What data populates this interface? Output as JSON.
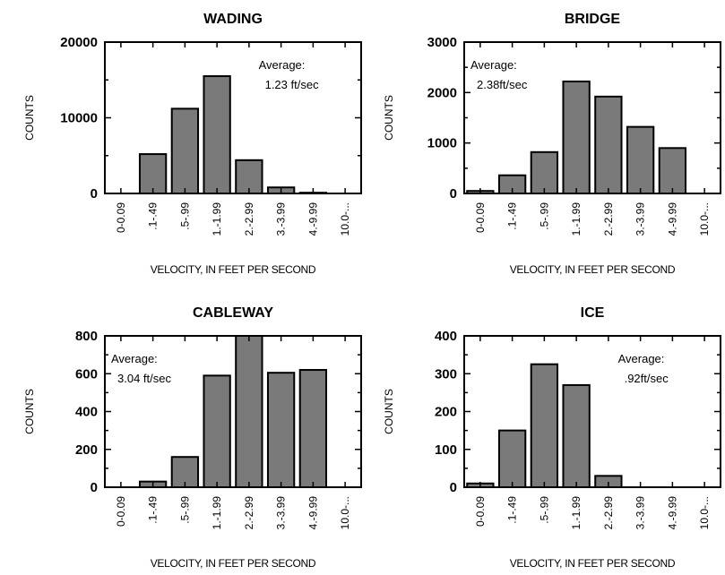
{
  "chart_data": [
    {
      "type": "bar",
      "title": "WADING",
      "xlabel": "VELOCITY, IN FEET PER SECOND",
      "ylabel": "COUNTS",
      "categories": [
        "0-0.09",
        ".1-.49",
        ".5-.99",
        "1.-1.99",
        "2.-2.99",
        "3.-3.99",
        "4.-9.99",
        "10.0-..."
      ],
      "values": [
        0,
        5200,
        11200,
        15500,
        4400,
        800,
        100,
        0
      ],
      "ylim": [
        0,
        20000
      ],
      "yticks": [
        0,
        10000,
        20000
      ],
      "annotation": [
        "Average:",
        "1.23 ft/sec"
      ],
      "annotation_position": "top-right",
      "grid": false
    },
    {
      "type": "bar",
      "title": "BRIDGE",
      "xlabel": "VELOCITY, IN FEET PER SECOND",
      "ylabel": "COUNTS",
      "categories": [
        "0-0.09",
        ".1-.49",
        ".5-.99",
        "1.-1.99",
        "2.-2.99",
        "3.-3.99",
        "4.-9.99",
        "10.0-..."
      ],
      "values": [
        50,
        360,
        820,
        2220,
        1920,
        1320,
        900,
        0
      ],
      "ylim": [
        0,
        3000
      ],
      "yticks": [
        0,
        1000,
        2000,
        3000
      ],
      "annotation": [
        "Average:",
        "2.38ft/sec"
      ],
      "annotation_position": "top-left",
      "grid": false
    },
    {
      "type": "bar",
      "title": "CABLEWAY",
      "xlabel": "VELOCITY, IN FEET PER SECOND",
      "ylabel": "COUNTS",
      "categories": [
        "0-0.09",
        ".1-.49",
        ".5-.99",
        "1.-1.99",
        "2.-2.99",
        "3.-3.99",
        "4.-9.99",
        "10.0-..."
      ],
      "values": [
        0,
        30,
        160,
        590,
        800,
        605,
        620,
        0
      ],
      "ylim": [
        0,
        800
      ],
      "yticks": [
        0,
        200,
        400,
        600,
        800
      ],
      "annotation": [
        "Average:",
        "3.04 ft/sec"
      ],
      "annotation_position": "top-left",
      "grid": false
    },
    {
      "type": "bar",
      "title": "ICE",
      "xlabel": "VELOCITY, IN FEET PER SECOND",
      "ylabel": "COUNTS",
      "categories": [
        "0-0.09",
        ".1-.49",
        ".5-.99",
        "1.-1.99",
        "2.-2.99",
        "3.-3.99",
        "4.-9.99",
        "10.0-..."
      ],
      "values": [
        10,
        150,
        325,
        270,
        30,
        0,
        0,
        0
      ],
      "ylim": [
        0,
        400
      ],
      "yticks": [
        0,
        100,
        200,
        300,
        400
      ],
      "annotation": [
        "Average:",
        ".92ft/sec"
      ],
      "annotation_position": "top-right",
      "grid": false
    }
  ]
}
